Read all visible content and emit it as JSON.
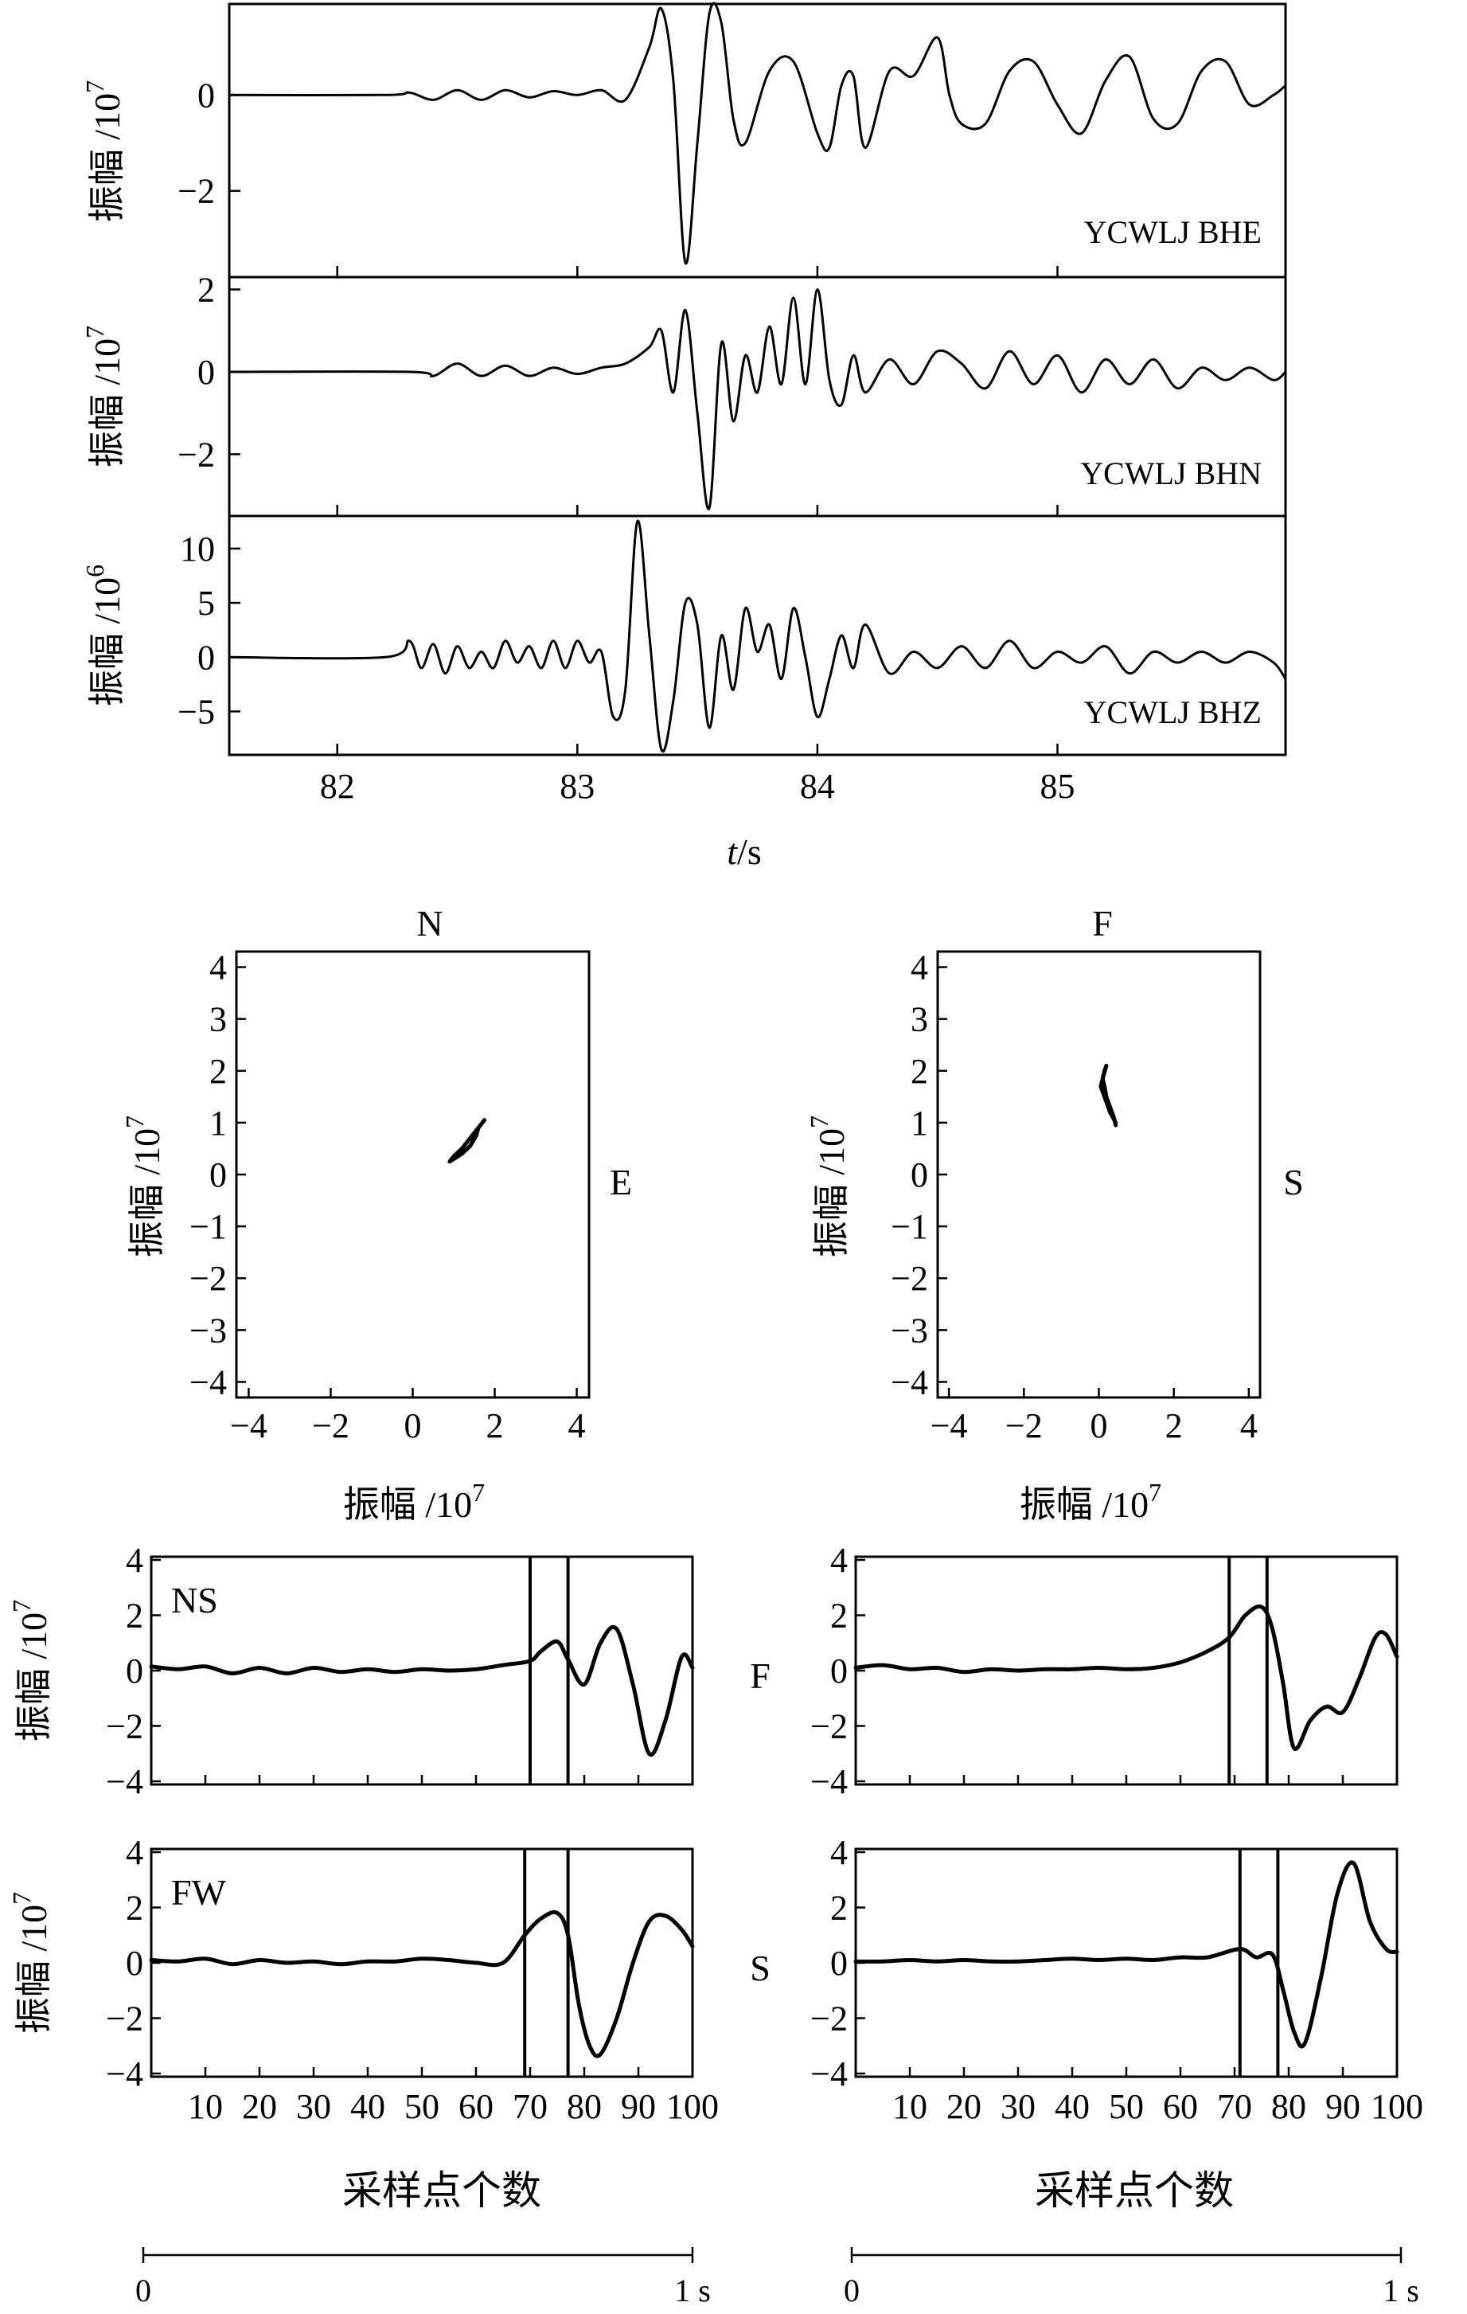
{
  "chart_data": [
    {
      "type": "line",
      "panel": "waveforms",
      "xlabel_italic": "t",
      "xlabel_rest": "/s",
      "xlim": [
        81.55,
        85.95
      ],
      "xticks": [
        "82",
        "83",
        "84",
        "85"
      ],
      "series": [
        {
          "name": "YCWLJ BHE",
          "ylabel": "振幅 /10",
          "ylabel_exp": "7",
          "ylim": [
            -3.8,
            1.9
          ],
          "yticks": [
            "0",
            "−2"
          ],
          "x": [
            81.55,
            82.2,
            82.3,
            82.4,
            82.5,
            82.6,
            82.7,
            82.8,
            82.9,
            83.0,
            83.1,
            83.2,
            83.3,
            83.35,
            83.4,
            83.45,
            83.5,
            83.55,
            83.6,
            83.65,
            83.7,
            83.8,
            83.9,
            84.0,
            84.05,
            84.1,
            84.15,
            84.2,
            84.3,
            84.4,
            84.5,
            84.55,
            84.6,
            84.7,
            84.8,
            84.9,
            85.0,
            85.1,
            85.2,
            85.3,
            85.4,
            85.5,
            85.6,
            85.7,
            85.8,
            85.9,
            85.95
          ],
          "y": [
            0,
            0,
            0.05,
            -0.1,
            0.1,
            -0.1,
            0.1,
            -0.05,
            0.08,
            0.0,
            0.1,
            -0.1,
            1.0,
            1.8,
            0.3,
            -3.5,
            -1.0,
            1.7,
            1.5,
            -0.5,
            -1.0,
            0.5,
            0.7,
            -0.8,
            -1.1,
            0.2,
            0.4,
            -1.1,
            0.5,
            0.4,
            1.2,
            0.0,
            -0.6,
            -0.6,
            0.5,
            0.7,
            -0.2,
            -0.8,
            0.3,
            0.8,
            -0.5,
            -0.6,
            0.5,
            0.7,
            -0.2,
            0.0,
            0.2
          ]
        },
        {
          "name": "YCWLJ BHN",
          "ylabel": "振幅 /10",
          "ylabel_exp": "7",
          "ylim": [
            -3.5,
            2.3
          ],
          "yticks": [
            "2",
            "0",
            "−2"
          ],
          "x": [
            81.55,
            82.3,
            82.4,
            82.5,
            82.6,
            82.7,
            82.8,
            82.9,
            83.0,
            83.1,
            83.2,
            83.3,
            83.35,
            83.4,
            83.45,
            83.5,
            83.55,
            83.6,
            83.65,
            83.7,
            83.75,
            83.8,
            83.85,
            83.9,
            83.95,
            84.0,
            84.05,
            84.1,
            84.15,
            84.2,
            84.3,
            84.4,
            84.5,
            84.6,
            84.7,
            84.8,
            84.9,
            85.0,
            85.1,
            85.2,
            85.3,
            85.4,
            85.5,
            85.6,
            85.7,
            85.8,
            85.9,
            85.95
          ],
          "y": [
            0,
            0,
            -0.1,
            0.2,
            -0.1,
            0.15,
            -0.1,
            0.1,
            -0.05,
            0.1,
            0.2,
            0.6,
            1.0,
            -0.5,
            1.5,
            -1.0,
            -3.3,
            0.7,
            -1.2,
            0.4,
            -0.5,
            1.1,
            -0.3,
            1.8,
            -0.3,
            2.0,
            -0.2,
            -0.8,
            0.4,
            -0.5,
            0.3,
            -0.3,
            0.5,
            0.2,
            -0.4,
            0.5,
            -0.3,
            0.4,
            -0.5,
            0.3,
            -0.3,
            0.3,
            -0.4,
            0.1,
            -0.2,
            0.1,
            -0.2,
            0.0
          ]
        },
        {
          "name": "YCWLJ BHZ",
          "ylabel": "振幅 /10",
          "ylabel_exp": "6",
          "ylim": [
            -9,
            13
          ],
          "yticks": [
            "10",
            "5",
            "0",
            "−5"
          ],
          "x": [
            81.55,
            82.2,
            82.3,
            82.35,
            82.4,
            82.45,
            82.5,
            82.55,
            82.6,
            82.65,
            82.7,
            82.75,
            82.8,
            82.85,
            82.9,
            82.95,
            83.0,
            83.05,
            83.1,
            83.15,
            83.2,
            83.25,
            83.3,
            83.35,
            83.4,
            83.45,
            83.5,
            83.55,
            83.6,
            83.65,
            83.7,
            83.75,
            83.8,
            83.85,
            83.9,
            83.95,
            84.0,
            84.05,
            84.1,
            84.15,
            84.2,
            84.3,
            84.4,
            84.5,
            84.6,
            84.7,
            84.8,
            84.9,
            85.0,
            85.1,
            85.2,
            85.3,
            85.4,
            85.5,
            85.6,
            85.7,
            85.8,
            85.9,
            85.95
          ],
          "y": [
            0,
            0,
            1.5,
            -1.0,
            1.2,
            -1.5,
            1.0,
            -1.0,
            0.5,
            -1.0,
            1.5,
            -0.5,
            1.0,
            -1.0,
            1.5,
            -1.0,
            1.5,
            -0.5,
            0.5,
            -5.5,
            -3.0,
            12.5,
            2.0,
            -8.5,
            -4.0,
            5.0,
            3.0,
            -6.5,
            2.0,
            -3.0,
            4.5,
            0.5,
            3.0,
            -2.0,
            4.5,
            0.0,
            -5.5,
            -2.0,
            2.0,
            -1.0,
            3.0,
            -1.5,
            0.5,
            -1.0,
            1.0,
            -1.0,
            1.5,
            -1.0,
            0.5,
            -0.5,
            1.0,
            -1.5,
            0.5,
            -0.5,
            0.5,
            -0.5,
            0.5,
            -0.5,
            -2.0
          ]
        }
      ]
    },
    {
      "type": "scatter",
      "panel": "particle-motion-left",
      "top_label": "N",
      "right_label": "E",
      "xlabel": "振幅 /10",
      "xlabel_exp": "7",
      "ylabel": "振幅 /10",
      "ylabel_exp": "7",
      "xlim": [
        -4.3,
        4.3
      ],
      "ylim": [
        -4.3,
        4.3
      ],
      "ticks": [
        -4,
        -3,
        -2,
        -1,
        0,
        1,
        2,
        3,
        4
      ],
      "tick_labels": [
        "−4",
        "−3",
        "−2",
        "−1",
        "0",
        "1",
        "2",
        "3",
        "4"
      ],
      "xtick_values": [
        -4,
        -2,
        0,
        2,
        4
      ],
      "xtick_labels": [
        "−4",
        "−2",
        "0",
        "2",
        "4"
      ],
      "x": [
        0.9,
        1.0,
        1.2,
        1.4,
        1.55,
        1.6,
        1.7,
        1.75,
        1.6,
        1.4,
        1.2,
        1.0,
        0.9
      ],
      "y": [
        0.25,
        0.3,
        0.4,
        0.55,
        0.75,
        0.9,
        1.0,
        1.05,
        0.9,
        0.7,
        0.5,
        0.35,
        0.25
      ]
    },
    {
      "type": "scatter",
      "panel": "particle-motion-right",
      "top_label": "F",
      "right_label": "S",
      "xlabel": "振幅 /10",
      "xlabel_exp": "7",
      "ylabel": "振幅 /10",
      "ylabel_exp": "7",
      "xlim": [
        -4.3,
        4.3
      ],
      "ylim": [
        -4.3,
        4.3
      ],
      "ticks": [
        -4,
        -3,
        -2,
        -1,
        0,
        1,
        2,
        3,
        4
      ],
      "tick_labels": [
        "−4",
        "−3",
        "−2",
        "−1",
        "0",
        "1",
        "2",
        "3",
        "4"
      ],
      "xtick_values": [
        -4,
        -2,
        0,
        2,
        4
      ],
      "xtick_labels": [
        "−4",
        "−2",
        "0",
        "2",
        "4"
      ],
      "x": [
        0.45,
        0.4,
        0.3,
        0.2,
        0.15,
        0.1,
        0.15,
        0.2,
        0.12,
        0.05,
        0.1,
        0.2,
        0.3,
        0.45
      ],
      "y": [
        0.95,
        1.1,
        1.3,
        1.5,
        1.7,
        1.85,
        2.0,
        2.1,
        1.9,
        1.7,
        1.6,
        1.4,
        1.2,
        1.0
      ]
    },
    {
      "type": "line",
      "panel": "window-left",
      "xlabel": "采样点个数",
      "xlim": [
        0,
        100
      ],
      "xtick_values": [
        10,
        20,
        30,
        40,
        50,
        60,
        70,
        80,
        90,
        100
      ],
      "xtick_labels": [
        "10",
        "20",
        "30",
        "40",
        "50",
        "60",
        "70",
        "80",
        "90",
        "100"
      ],
      "scale_bar": [
        "0",
        "1 s"
      ],
      "subplots": [
        {
          "label": "NS",
          "side_label": "",
          "ylabel": "振幅 /10",
          "ylabel_exp": "7",
          "ylim": [
            -4,
            4
          ],
          "yticks": [
            "4",
            "2",
            "0",
            "−2",
            "−4"
          ],
          "window": [
            70,
            77
          ],
          "x": [
            0,
            5,
            10,
            15,
            20,
            25,
            30,
            35,
            40,
            45,
            50,
            55,
            60,
            65,
            70,
            72,
            75,
            77,
            80,
            83,
            86,
            89,
            92,
            95,
            98,
            100
          ],
          "y": [
            0.15,
            0.05,
            0.15,
            -0.1,
            0.1,
            -0.1,
            0.1,
            -0.05,
            0.05,
            -0.05,
            0.05,
            0.0,
            0.05,
            0.2,
            0.35,
            0.7,
            1.05,
            0.4,
            -0.5,
            1.0,
            1.5,
            -0.5,
            -3.0,
            -1.8,
            0.5,
            0.1
          ]
        },
        {
          "label": "FW",
          "side_label": "",
          "ylabel": "振幅 /10",
          "ylabel_exp": "7",
          "ylim": [
            -4,
            4
          ],
          "yticks": [
            "4",
            "2",
            "0",
            "−2",
            "−4"
          ],
          "window": [
            69,
            77
          ],
          "x": [
            0,
            5,
            10,
            15,
            20,
            25,
            30,
            35,
            40,
            45,
            50,
            55,
            60,
            65,
            69,
            72,
            75,
            77,
            79,
            81,
            83,
            86,
            89,
            92,
            95,
            98,
            100
          ],
          "y": [
            0.1,
            0.05,
            0.15,
            -0.05,
            0.1,
            0.0,
            0.05,
            -0.05,
            0.05,
            0.05,
            0.15,
            0.1,
            0.0,
            0.0,
            1.0,
            1.6,
            1.8,
            1.0,
            -1.5,
            -3.0,
            -3.3,
            -2.0,
            0.0,
            1.5,
            1.7,
            1.2,
            0.6
          ]
        }
      ]
    },
    {
      "type": "line",
      "panel": "window-right",
      "xlabel": "采样点个数",
      "xlim": [
        0,
        100
      ],
      "xtick_values": [
        10,
        20,
        30,
        40,
        50,
        60,
        70,
        80,
        90,
        100
      ],
      "xtick_labels": [
        "10",
        "20",
        "30",
        "40",
        "50",
        "60",
        "70",
        "80",
        "90",
        "100"
      ],
      "scale_bar": [
        "0",
        "1 s"
      ],
      "subplots": [
        {
          "label": "",
          "side_label": "F",
          "ylabel": "",
          "ylabel_exp": "",
          "ylim": [
            -4,
            4
          ],
          "yticks": [
            "4",
            "2",
            "0",
            "−2",
            "−4"
          ],
          "window": [
            69,
            76
          ],
          "x": [
            0,
            5,
            10,
            15,
            20,
            25,
            30,
            35,
            40,
            45,
            50,
            55,
            60,
            65,
            69,
            72,
            75,
            77,
            79,
            81,
            84,
            87,
            90,
            93,
            96,
            98,
            100
          ],
          "y": [
            0.1,
            0.2,
            0.05,
            0.1,
            -0.05,
            0.05,
            0.0,
            0.05,
            0.05,
            0.1,
            0.05,
            0.1,
            0.3,
            0.7,
            1.2,
            2.0,
            2.3,
            1.5,
            -0.5,
            -2.8,
            -1.8,
            -1.3,
            -1.5,
            -0.3,
            1.2,
            1.3,
            0.5
          ]
        },
        {
          "label": "",
          "side_label": "S",
          "ylabel": "",
          "ylabel_exp": "",
          "ylim": [
            -4,
            4
          ],
          "yticks": [
            "4",
            "2",
            "0",
            "−2",
            "−4"
          ],
          "window": [
            71,
            78
          ],
          "x": [
            0,
            5,
            10,
            15,
            20,
            25,
            30,
            35,
            40,
            45,
            50,
            55,
            60,
            65,
            71,
            74,
            77,
            79,
            81,
            83,
            86,
            89,
            92,
            95,
            98,
            100
          ],
          "y": [
            0.05,
            0.05,
            0.1,
            0.05,
            0.1,
            0.05,
            0.05,
            0.1,
            0.15,
            0.1,
            0.15,
            0.1,
            0.2,
            0.2,
            0.5,
            0.2,
            0.3,
            -1.0,
            -2.5,
            -2.9,
            -0.5,
            2.5,
            3.6,
            1.5,
            0.5,
            0.4
          ]
        }
      ]
    }
  ]
}
